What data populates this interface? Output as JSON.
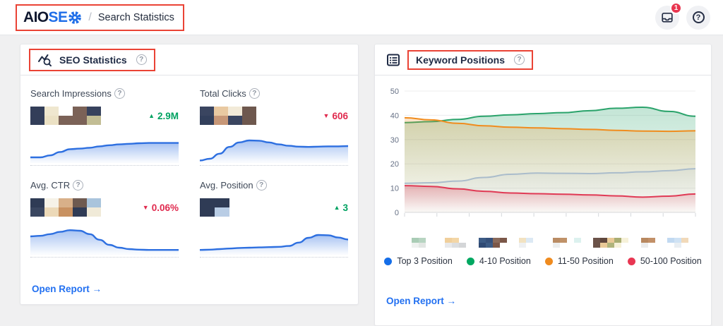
{
  "colors": {
    "annotation": "#ea4335",
    "link_blue": "#2270f1",
    "trend_up_green": "#00a261",
    "trend_down_red": "#e02a4e",
    "spark_blue": "#2d6fe0",
    "navy": "#1f2b45"
  },
  "glyphs": {
    "help": "?"
  },
  "header": {
    "logo_part1": "AIO",
    "logo_part2": "SE",
    "breadcrumb_separator": "/",
    "breadcrumb": "Search Statistics",
    "notification_badge": "1",
    "help_glyph": "?"
  },
  "seo_panel": {
    "title": "SEO Statistics",
    "open_report": "Open Report →",
    "metrics": [
      {
        "label": "Search Impressions",
        "trend": "up",
        "arrow": "▲",
        "value_redacted": true,
        "trend_value": "2.9M"
      },
      {
        "label": "Total Clicks",
        "trend": "down",
        "arrow": "▼",
        "value_redacted": true,
        "trend_value": "606"
      },
      {
        "label": "Avg. CTR",
        "trend": "down",
        "arrow": "▼",
        "value_redacted": true,
        "trend_value": "0.06%"
      },
      {
        "label": "Avg. Position",
        "trend": "up",
        "arrow": "▲",
        "value_redacted": true,
        "trend_value": "3"
      }
    ]
  },
  "keyword_panel": {
    "title": "Keyword Positions",
    "open_report": "Open Report →",
    "legend": [
      {
        "label": "Top 3 Position",
        "color": "#156ee8"
      },
      {
        "label": "4-10 Position",
        "color": "#00a861"
      },
      {
        "label": "11-50 Position",
        "color": "#ef8b1f"
      },
      {
        "label": "50-100 Position",
        "color": "#e83652"
      }
    ]
  },
  "chart_data": [
    {
      "type": "area",
      "title": "Keyword Positions",
      "ylabel": "",
      "xlabel": "",
      "ylim": [
        0,
        50
      ],
      "yticks": [
        0,
        10,
        20,
        30,
        40,
        50
      ],
      "grid": true,
      "legend_position": "bottom",
      "x_labels_redacted": true,
      "series": [
        {
          "name": "4-10 Position",
          "color": "#2aa36b",
          "values": [
            37,
            37.4,
            38.3,
            39.6,
            40.2,
            40.7,
            41.1,
            41.9,
            42.9,
            43.3,
            41.6,
            39.6
          ]
        },
        {
          "name": "11-50 Position",
          "color": "#f08c1e",
          "values": [
            39,
            38.1,
            36.7,
            35.7,
            35.1,
            34.8,
            34.5,
            34.2,
            33.8,
            33.5,
            33.4,
            33.6
          ]
        },
        {
          "name": "Top 3 Position",
          "color": "#aabccb",
          "values": [
            12,
            12.2,
            12.9,
            14.4,
            15.7,
            16.2,
            16.1,
            16,
            16.3,
            16.7,
            17.2,
            18
          ]
        },
        {
          "name": "50-100 Position",
          "color": "#e03a55",
          "values": [
            11,
            10.7,
            9.7,
            8.7,
            8,
            7.7,
            7.5,
            7.2,
            6.8,
            6.3,
            6.7,
            7.6
          ]
        }
      ]
    },
    {
      "type": "area",
      "title": "Search Impressions sparkline",
      "values": [
        15,
        15,
        22,
        34,
        44,
        46,
        49,
        54,
        58,
        61,
        63,
        65,
        66,
        66,
        66,
        66
      ]
    },
    {
      "type": "area",
      "title": "Total Clicks sparkline",
      "values": [
        4,
        10,
        28,
        52,
        68,
        75,
        74,
        68,
        61,
        56,
        53,
        52,
        53,
        54,
        54,
        55
      ]
    },
    {
      "type": "area",
      "title": "Avg. CTR sparkline",
      "values": [
        60,
        62,
        68,
        76,
        82,
        80,
        68,
        48,
        30,
        20,
        15,
        13,
        12,
        12,
        12,
        12
      ]
    },
    {
      "type": "area",
      "title": "Avg. Position sparkline",
      "values": [
        12,
        13,
        15,
        17,
        19,
        20,
        21,
        22,
        23,
        26,
        38,
        55,
        65,
        64,
        56,
        49
      ]
    }
  ],
  "redactions": {
    "value_mosaics": [
      {
        "cols": 5,
        "cw": 20,
        "ch": 13,
        "cells": [
          "#333e59",
          "#efe7cf",
          "",
          "#7b6257",
          "#37425d",
          "#333e59",
          "#ebe1c4",
          "#7b6257",
          "#7b6257",
          "#c2bd94"
        ]
      },
      {
        "cols": 4,
        "cw": 20,
        "ch": 13,
        "cells": [
          "#3a4560",
          "#e9c9a1",
          "#f2ead8",
          "#6e584e",
          "#323f5b",
          "#c79777",
          "#3a4560",
          "#6e584e"
        ]
      },
      {
        "cols": 5,
        "cw": 20,
        "ch": 13,
        "cells": [
          "#2f3b55",
          "#f6f2e8",
          "#d8b089",
          "#6e5a50",
          "#a9c4dc",
          "#3a4660",
          "#ecd9b8",
          "#c89161",
          "#2f3b55",
          "#f0ead8"
        ]
      },
      {
        "cols": 2,
        "cw": 21,
        "ch": 13,
        "cells": [
          "#2f3b55",
          "#2f3b55",
          "#2f3b55",
          "#b9cde5"
        ]
      }
    ],
    "x_label_mosaics": [
      {
        "cols": 3,
        "cw": 10,
        "ch": 7,
        "cells": [
          "#a9ccb5",
          "#b7d4c1",
          "",
          "#eef1ef",
          "#e2e6e3",
          ""
        ]
      },
      {
        "cols": 3,
        "cw": 10,
        "ch": 7,
        "cells": [
          "#f0cf9b",
          "#f3d6a6",
          "",
          "#e8e9eb",
          "#dcdee0",
          "#d4d6d8"
        ]
      },
      {
        "cols": 4,
        "cw": 10,
        "ch": 7,
        "cells": [
          "#3c5b85",
          "#35507a",
          "#8a6a5a",
          "#7b5748",
          "#2f4a74",
          "#3c5b85",
          "#7b5748",
          ""
        ]
      },
      {
        "cols": 3,
        "cw": 10,
        "ch": 7,
        "cells": [
          "#f2e2c1",
          "#dce9f4",
          "",
          "#eef0f2",
          "",
          ""
        ]
      },
      {
        "cols": 4,
        "cw": 10,
        "ch": 7,
        "cells": [
          "#b98b63",
          "#c09268",
          "",
          "#dcf1ef",
          "#eceeee",
          "",
          "",
          ""
        ]
      },
      {
        "cols": 5,
        "cw": 10,
        "ch": 7,
        "cells": [
          "#6b5349",
          "#5f473d",
          "#e9c997",
          "#a9ad73",
          "#f6f1d9",
          "#6b5349",
          "#e9c997",
          "#b0b47b",
          "#f6f1d9",
          ""
        ]
      },
      {
        "cols": 2,
        "cw": 10,
        "ch": 7,
        "cells": [
          "#b8885f",
          "#c29068",
          "#ececec",
          ""
        ]
      },
      {
        "cols": 4,
        "cw": 10,
        "ch": 7,
        "cells": [
          "#c1d9f1",
          "#cfe2f4",
          "#f1d9b9",
          "",
          "",
          "#e9eef2",
          "",
          ""
        ]
      }
    ]
  }
}
